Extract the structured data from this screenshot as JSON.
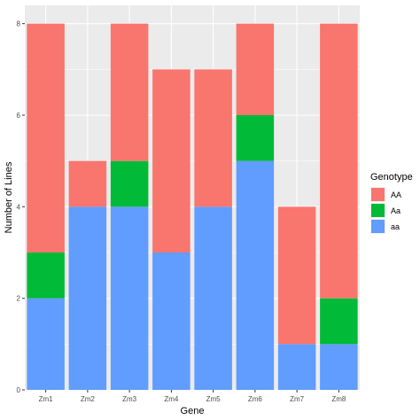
{
  "chart_data": {
    "type": "bar",
    "stacked": true,
    "categories": [
      "Zm1",
      "Zm2",
      "Zm3",
      "Zm4",
      "Zm5",
      "Zm6",
      "Zm7",
      "Zm8"
    ],
    "series": [
      {
        "name": "aa",
        "color": "#619CFF",
        "values": [
          2,
          4,
          4,
          3,
          4,
          5,
          1,
          1
        ]
      },
      {
        "name": "Aa",
        "color": "#00BA38",
        "values": [
          1,
          0,
          1,
          0,
          0,
          1,
          0,
          1
        ]
      },
      {
        "name": "AA",
        "color": "#F8766D",
        "values": [
          5,
          1,
          3,
          4,
          3,
          2,
          3,
          6
        ]
      }
    ],
    "xlabel": "Gene",
    "ylabel": "Number of Lines",
    "ylim": [
      0,
      8.4
    ],
    "yticks": [
      0,
      2,
      4,
      6,
      8
    ],
    "grid": true,
    "panel_background": "#EBEBEB",
    "legend": {
      "title": "Genotype",
      "position": "right",
      "order": [
        "AA",
        "Aa",
        "aa"
      ]
    }
  }
}
